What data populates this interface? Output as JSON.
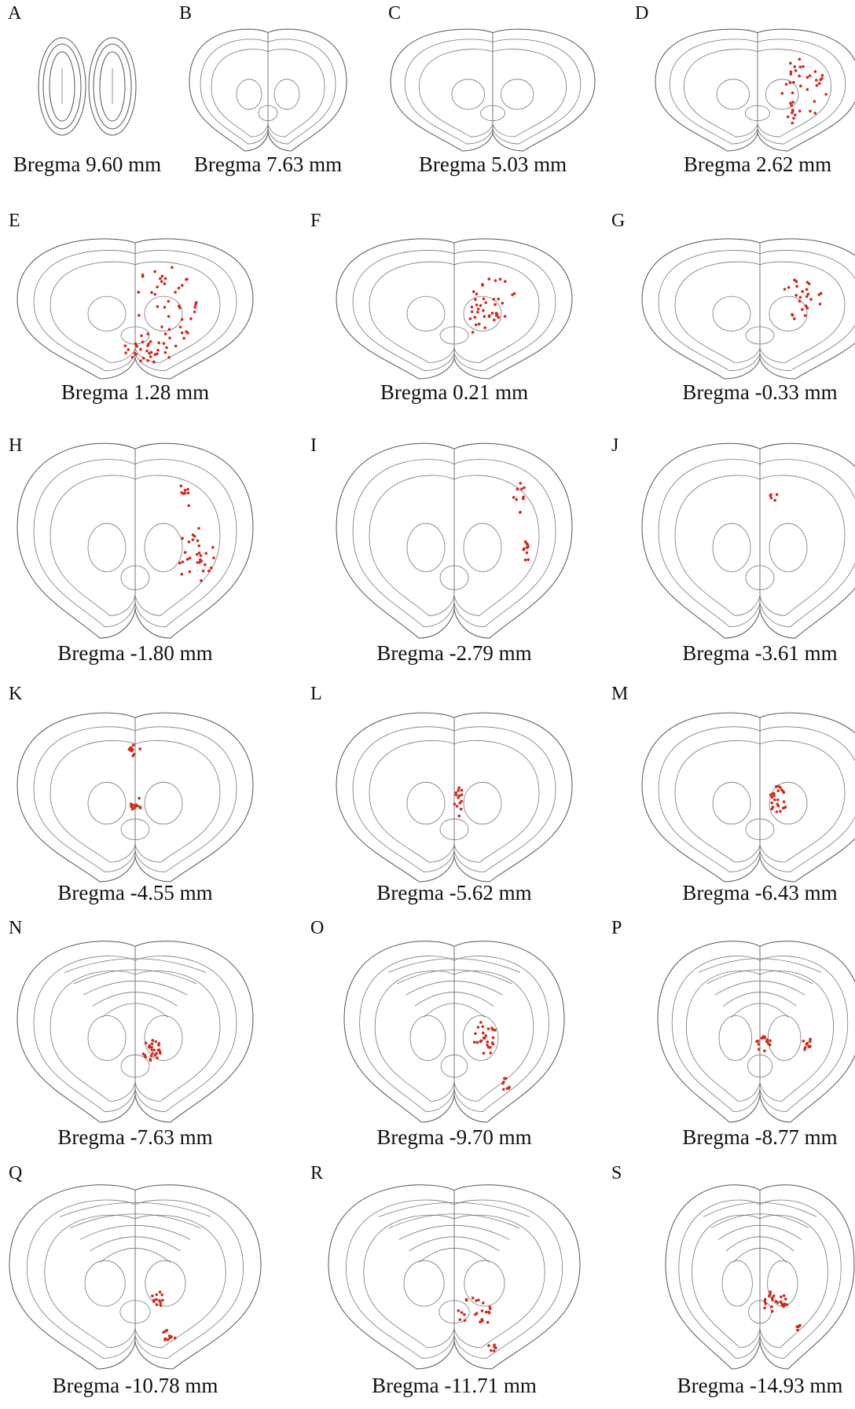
{
  "panels": [
    {
      "label": "A",
      "caption": "Bregma 9.60 mm"
    },
    {
      "label": "B",
      "caption": "Bregma 7.63 mm"
    },
    {
      "label": "C",
      "caption": "Bregma 5.03 mm"
    },
    {
      "label": "D",
      "caption": "Bregma 2.62 mm"
    },
    {
      "label": "E",
      "caption": "Bregma 1.28 mm"
    },
    {
      "label": "F",
      "caption": "Bregma 0.21 mm"
    },
    {
      "label": "G",
      "caption": "Bregma -0.33 mm"
    },
    {
      "label": "H",
      "caption": "Bregma -1.80 mm"
    },
    {
      "label": "I",
      "caption": "Bregma -2.79 mm"
    },
    {
      "label": "J",
      "caption": "Bregma -3.61 mm"
    },
    {
      "label": "K",
      "caption": "Bregma -4.55 mm"
    },
    {
      "label": "L",
      "caption": "Bregma -5.62 mm"
    },
    {
      "label": "M",
      "caption": "Bregma -6.43 mm"
    },
    {
      "label": "N",
      "caption": "Bregma -7.63 mm"
    },
    {
      "label": "O",
      "caption": "Bregma -9.70 mm"
    },
    {
      "label": "P",
      "caption": "Bregma -8.77 mm"
    },
    {
      "label": "Q",
      "caption": "Bregma -10.78 mm"
    },
    {
      "label": "R",
      "caption": "Bregma -11.71 mm"
    },
    {
      "label": "S",
      "caption": "Bregma -14.93 mm"
    }
  ]
}
